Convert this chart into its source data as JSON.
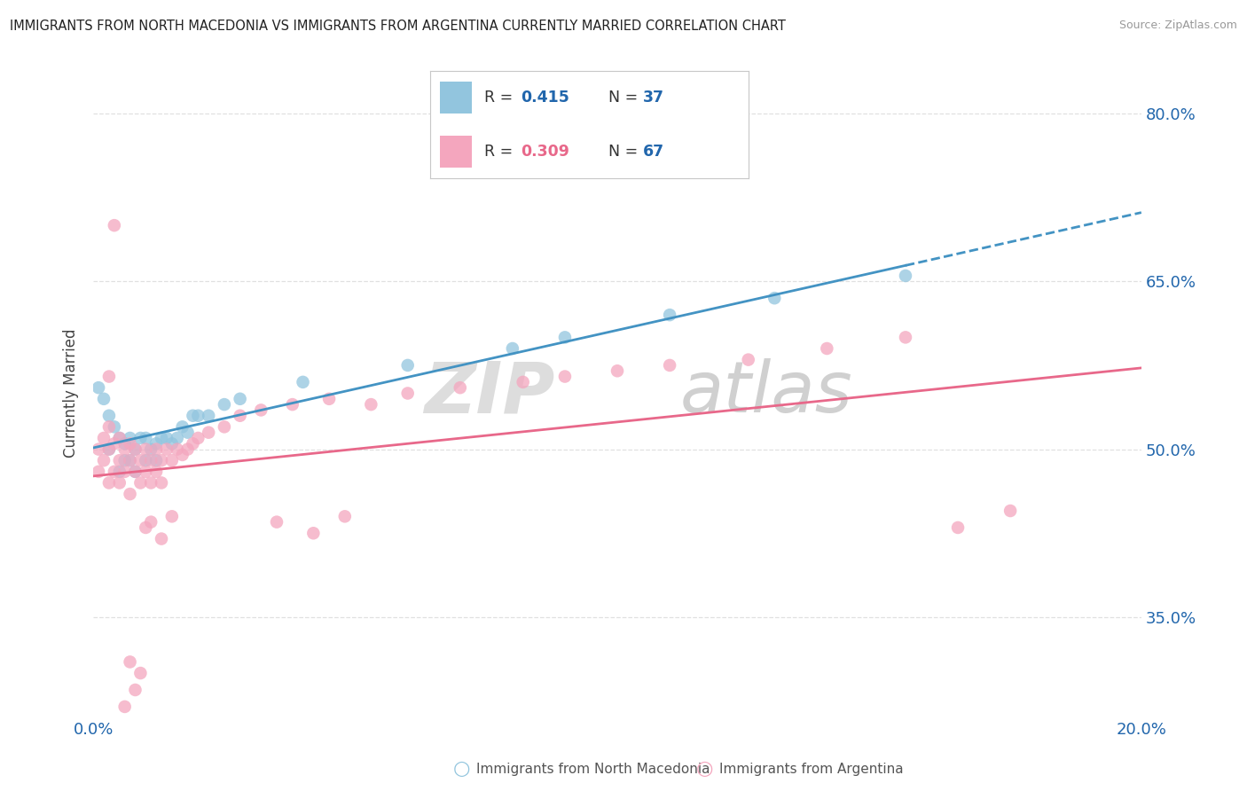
{
  "title": "IMMIGRANTS FROM NORTH MACEDONIA VS IMMIGRANTS FROM ARGENTINA CURRENTLY MARRIED CORRELATION CHART",
  "source": "Source: ZipAtlas.com",
  "ylabel": "Currently Married",
  "xlim": [
    0.0,
    0.2
  ],
  "ylim": [
    0.26,
    0.84
  ],
  "yticks": [
    0.35,
    0.5,
    0.65,
    0.8
  ],
  "ytick_labels": [
    "35.0%",
    "50.0%",
    "65.0%",
    "80.0%"
  ],
  "xticks": [
    0.0,
    0.2
  ],
  "xtick_labels": [
    "0.0%",
    "20.0%"
  ],
  "legend_r1": "R = 0.415",
  "legend_n1": "N = 37",
  "legend_r2": "R = 0.309",
  "legend_n2": "N = 67",
  "color_blue": "#92c5de",
  "color_pink": "#f4a6be",
  "color_blue_line": "#4393c3",
  "color_pink_line": "#e8688a",
  "color_blue_text": "#2166ac",
  "color_pink_text": "#e8688a",
  "label1": "Immigrants from North Macedonia",
  "label2": "Immigrants from Argentina",
  "blue_x": [
    0.001,
    0.002,
    0.003,
    0.003,
    0.004,
    0.005,
    0.005,
    0.006,
    0.006,
    0.007,
    0.007,
    0.008,
    0.008,
    0.009,
    0.01,
    0.01,
    0.011,
    0.012,
    0.012,
    0.013,
    0.014,
    0.015,
    0.016,
    0.017,
    0.018,
    0.019,
    0.02,
    0.022,
    0.025,
    0.028,
    0.04,
    0.06,
    0.08,
    0.09,
    0.11,
    0.13,
    0.155
  ],
  "blue_y": [
    0.555,
    0.545,
    0.53,
    0.5,
    0.52,
    0.51,
    0.48,
    0.505,
    0.49,
    0.51,
    0.49,
    0.5,
    0.48,
    0.51,
    0.49,
    0.51,
    0.5,
    0.505,
    0.49,
    0.51,
    0.51,
    0.505,
    0.51,
    0.52,
    0.515,
    0.53,
    0.53,
    0.53,
    0.54,
    0.545,
    0.56,
    0.575,
    0.59,
    0.6,
    0.62,
    0.635,
    0.655
  ],
  "pink_x": [
    0.001,
    0.001,
    0.002,
    0.002,
    0.003,
    0.003,
    0.003,
    0.004,
    0.004,
    0.005,
    0.005,
    0.005,
    0.006,
    0.006,
    0.007,
    0.007,
    0.007,
    0.008,
    0.008,
    0.009,
    0.009,
    0.01,
    0.01,
    0.011,
    0.011,
    0.012,
    0.012,
    0.013,
    0.013,
    0.014,
    0.015,
    0.016,
    0.017,
    0.018,
    0.019,
    0.02,
    0.022,
    0.025,
    0.028,
    0.032,
    0.038,
    0.045,
    0.053,
    0.06,
    0.07,
    0.082,
    0.09,
    0.1,
    0.11,
    0.125,
    0.14,
    0.155,
    0.165,
    0.175,
    0.048,
    0.035,
    0.042,
    0.003,
    0.004,
    0.006,
    0.007,
    0.008,
    0.009,
    0.01,
    0.011,
    0.013,
    0.015
  ],
  "pink_y": [
    0.5,
    0.48,
    0.51,
    0.49,
    0.52,
    0.5,
    0.47,
    0.505,
    0.48,
    0.51,
    0.49,
    0.47,
    0.5,
    0.48,
    0.505,
    0.49,
    0.46,
    0.5,
    0.48,
    0.49,
    0.47,
    0.5,
    0.48,
    0.49,
    0.47,
    0.5,
    0.48,
    0.49,
    0.47,
    0.5,
    0.49,
    0.5,
    0.495,
    0.5,
    0.505,
    0.51,
    0.515,
    0.52,
    0.53,
    0.535,
    0.54,
    0.545,
    0.54,
    0.55,
    0.555,
    0.56,
    0.565,
    0.57,
    0.575,
    0.58,
    0.59,
    0.6,
    0.43,
    0.445,
    0.44,
    0.435,
    0.425,
    0.565,
    0.7,
    0.27,
    0.31,
    0.285,
    0.3,
    0.43,
    0.435,
    0.42,
    0.44
  ],
  "watermark_zip": "ZIP",
  "watermark_atlas": "atlas",
  "background_color": "#ffffff",
  "grid_color": "#e0e0e0"
}
